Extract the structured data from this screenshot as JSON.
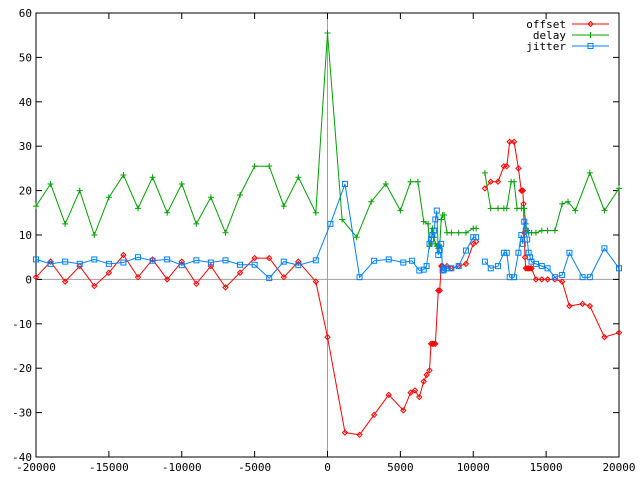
{
  "chart_data": {
    "type": "line",
    "title": "",
    "xlabel": "",
    "ylabel": "",
    "xlim": [
      -20000,
      20000
    ],
    "ylim": [
      -40,
      60
    ],
    "x_ticks": [
      -20000,
      -15000,
      -10000,
      -5000,
      0,
      5000,
      10000,
      15000,
      20000
    ],
    "y_ticks": [
      -40,
      -30,
      -20,
      -10,
      0,
      10,
      20,
      30,
      40,
      50,
      60
    ],
    "zero_axes": true,
    "grid": false,
    "legend_position": "top-right",
    "series": [
      {
        "name": "offset",
        "color": "#ff0000",
        "marker": "diamond",
        "segments": [
          [
            [
              -20000,
              0.5
            ],
            [
              -19000,
              4
            ],
            [
              -18000,
              -0.5
            ],
            [
              -17000,
              3
            ],
            [
              -16000,
              -1.5
            ],
            [
              -15000,
              1.5
            ],
            [
              -14000,
              5.5
            ],
            [
              -13000,
              0.5
            ],
            [
              -12000,
              4.5
            ],
            [
              -11000,
              0
            ],
            [
              -10000,
              4
            ],
            [
              -9000,
              -1
            ],
            [
              -8000,
              3
            ],
            [
              -7000,
              -1.8
            ],
            [
              -6000,
              1.5
            ],
            [
              -5000,
              4.8
            ],
            [
              -4000,
              4.8
            ],
            [
              -3000,
              0.5
            ],
            [
              -2000,
              4
            ],
            [
              -800,
              -0.5
            ],
            [
              0,
              -13
            ],
            [
              1200,
              -34.5
            ],
            [
              2200,
              -35
            ],
            [
              3200,
              -30.5
            ],
            [
              4200,
              -26
            ],
            [
              5200,
              -29.5
            ],
            [
              5700,
              -25.5
            ],
            [
              6000,
              -25
            ],
            [
              6300,
              -26.5
            ],
            [
              6600,
              -23
            ],
            [
              6800,
              -21.5
            ],
            [
              7000,
              -20.5
            ],
            [
              7100,
              -14.5
            ],
            [
              7200,
              -14.5
            ],
            [
              7300,
              -14.5
            ],
            [
              7400,
              -14.5
            ],
            [
              7600,
              -2.5
            ],
            [
              7700,
              -2.5
            ],
            [
              7800,
              3
            ],
            [
              7900,
              3
            ],
            [
              8000,
              2.5
            ],
            [
              8200,
              3
            ],
            [
              8500,
              2.5
            ],
            [
              9000,
              3
            ],
            [
              9500,
              3.5
            ],
            [
              10000,
              8
            ],
            [
              10200,
              8.5
            ]
          ],
          [
            [
              10800,
              20.5
            ],
            [
              11200,
              22
            ],
            [
              11700,
              22
            ],
            [
              12100,
              25.5
            ],
            [
              12300,
              25.5
            ],
            [
              12500,
              31
            ],
            [
              12800,
              31
            ],
            [
              13100,
              25
            ],
            [
              13300,
              20
            ],
            [
              13350,
              20
            ],
            [
              13400,
              20
            ],
            [
              13450,
              17
            ],
            [
              13500,
              10.5
            ],
            [
              13550,
              5
            ],
            [
              13600,
              2.5
            ],
            [
              13700,
              2.5
            ],
            [
              13800,
              2.5
            ],
            [
              13900,
              2.5
            ],
            [
              14000,
              2.5
            ],
            [
              14300,
              0
            ],
            [
              14700,
              0
            ],
            [
              15100,
              0
            ],
            [
              15600,
              0
            ],
            [
              16100,
              -0.5
            ],
            [
              16600,
              -6
            ],
            [
              17500,
              -5.5
            ],
            [
              18000,
              -6
            ],
            [
              19000,
              -13
            ],
            [
              20000,
              -12
            ]
          ]
        ]
      },
      {
        "name": "delay",
        "color": "#00a000",
        "marker": "plus",
        "segments": [
          [
            [
              -20000,
              16.5
            ],
            [
              -19000,
              21.5
            ],
            [
              -18000,
              12.5
            ],
            [
              -17000,
              20
            ],
            [
              -16000,
              10
            ],
            [
              -15000,
              18.5
            ],
            [
              -14000,
              23.5
            ],
            [
              -13000,
              16
            ],
            [
              -12000,
              23
            ],
            [
              -11000,
              15
            ],
            [
              -10000,
              21.5
            ],
            [
              -9000,
              12.5
            ],
            [
              -8000,
              18.5
            ],
            [
              -7000,
              10.5
            ],
            [
              -6000,
              19
            ],
            [
              -5000,
              25.5
            ],
            [
              -4000,
              25.5
            ],
            [
              -3000,
              16.5
            ],
            [
              -2000,
              23
            ],
            [
              -800,
              15
            ],
            [
              0,
              55.5
            ],
            [
              1000,
              13.5
            ],
            [
              2000,
              9.5
            ],
            [
              3000,
              17.5
            ],
            [
              4000,
              21.5
            ],
            [
              5000,
              15.5
            ],
            [
              5700,
              22
            ],
            [
              6200,
              22
            ],
            [
              6600,
              13
            ],
            [
              6900,
              12.5
            ],
            [
              7000,
              7.5
            ],
            [
              7100,
              8
            ],
            [
              7200,
              11.5
            ],
            [
              7300,
              9.5
            ],
            [
              7400,
              8
            ],
            [
              7500,
              7.5
            ],
            [
              7600,
              7
            ],
            [
              7700,
              7.5
            ],
            [
              7800,
              13.5
            ],
            [
              7900,
              14.5
            ],
            [
              8000,
              14.5
            ],
            [
              8200,
              10.5
            ],
            [
              8500,
              10.5
            ],
            [
              9000,
              10.5
            ],
            [
              9500,
              10.5
            ],
            [
              10000,
              11.5
            ],
            [
              10200,
              11.5
            ]
          ],
          [
            [
              10800,
              24
            ],
            [
              11200,
              16
            ],
            [
              11700,
              16
            ],
            [
              12100,
              16
            ],
            [
              12300,
              16
            ],
            [
              12600,
              22
            ],
            [
              12800,
              22
            ],
            [
              13000,
              16
            ],
            [
              13300,
              16
            ],
            [
              13500,
              16
            ],
            [
              13600,
              12.5
            ],
            [
              13700,
              11
            ],
            [
              13800,
              10.5
            ],
            [
              14000,
              10.5
            ],
            [
              14300,
              10.5
            ],
            [
              14700,
              11
            ],
            [
              15100,
              11
            ],
            [
              15600,
              11
            ],
            [
              16100,
              17
            ],
            [
              16500,
              17.5
            ],
            [
              17000,
              15.5
            ],
            [
              18000,
              24
            ],
            [
              19000,
              15.5
            ],
            [
              20000,
              20.5
            ]
          ]
        ]
      },
      {
        "name": "jitter",
        "color": "#0080ff",
        "marker": "square",
        "segments": [
          [
            [
              -20000,
              4.5
            ],
            [
              -19000,
              3.5
            ],
            [
              -18000,
              4
            ],
            [
              -17000,
              3.5
            ],
            [
              -16000,
              4.5
            ],
            [
              -15000,
              3.5
            ],
            [
              -14000,
              3.8
            ],
            [
              -13000,
              5
            ],
            [
              -12000,
              4.2
            ],
            [
              -11000,
              4.5
            ],
            [
              -10000,
              3.2
            ],
            [
              -9000,
              4.3
            ],
            [
              -8000,
              3.8
            ],
            [
              -7000,
              4.3
            ],
            [
              -6000,
              3.3
            ],
            [
              -5000,
              3.3
            ],
            [
              -4000,
              0.3
            ],
            [
              -3000,
              4
            ],
            [
              -2000,
              3.2
            ],
            [
              -800,
              4.3
            ],
            [
              200,
              12.5
            ],
            [
              1200,
              21.5
            ],
            [
              2200,
              0.5
            ],
            [
              3200,
              4.2
            ],
            [
              4200,
              4.5
            ],
            [
              5200,
              3.8
            ],
            [
              5800,
              4.2
            ],
            [
              6300,
              2
            ],
            [
              6600,
              2.2
            ],
            [
              6800,
              3
            ],
            [
              7000,
              8
            ],
            [
              7100,
              9
            ],
            [
              7200,
              10
            ],
            [
              7300,
              11
            ],
            [
              7400,
              13.5
            ],
            [
              7500,
              15.5
            ],
            [
              7600,
              5.5
            ],
            [
              7700,
              6.5
            ],
            [
              7800,
              8
            ],
            [
              7900,
              2
            ],
            [
              8000,
              2.2
            ],
            [
              8200,
              2.5
            ],
            [
              8500,
              2.5
            ],
            [
              9000,
              3
            ],
            [
              9500,
              6.5
            ],
            [
              10000,
              9.5
            ],
            [
              10200,
              9.5
            ]
          ],
          [
            [
              10800,
              4
            ],
            [
              11200,
              2.5
            ],
            [
              11700,
              3
            ],
            [
              12100,
              6
            ],
            [
              12300,
              6
            ],
            [
              12500,
              0.5
            ],
            [
              12800,
              0.5
            ],
            [
              13100,
              6
            ],
            [
              13300,
              10
            ],
            [
              13400,
              8
            ],
            [
              13500,
              13
            ],
            [
              13600,
              11
            ],
            [
              13700,
              9
            ],
            [
              13800,
              6
            ],
            [
              13900,
              5
            ],
            [
              14000,
              4
            ],
            [
              14300,
              3.5
            ],
            [
              14700,
              3
            ],
            [
              15100,
              2.5
            ],
            [
              15600,
              0.5
            ],
            [
              16100,
              1
            ],
            [
              16600,
              6
            ],
            [
              17500,
              0.5
            ],
            [
              18000,
              0.5
            ],
            [
              19000,
              7
            ],
            [
              20000,
              2.5
            ]
          ]
        ]
      }
    ]
  }
}
